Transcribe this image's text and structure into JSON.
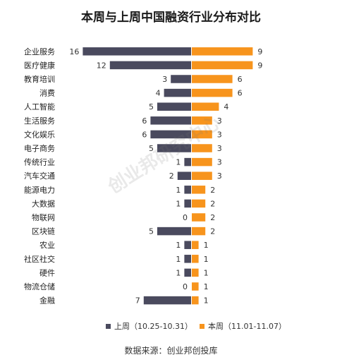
{
  "chart_data": {
    "type": "bar",
    "title": "本周与上周中国融资行业分布对比",
    "categories": [
      "企业服务",
      "医疗健康",
      "教育培训",
      "消费",
      "人工智能",
      "生活服务",
      "文化娱乐",
      "电子商务",
      "传统行业",
      "汽车交通",
      "能源电力",
      "大数据",
      "物联网",
      "区块链",
      "农业",
      "社区社交",
      "硬件",
      "物流仓储",
      "金融"
    ],
    "series": [
      {
        "name": "上周（10.25-10.31）",
        "color": "#4a4a5e",
        "values": [
          16,
          12,
          3,
          4,
          5,
          6,
          6,
          5,
          1,
          2,
          1,
          1,
          0,
          5,
          1,
          1,
          1,
          0,
          7
        ]
      },
      {
        "name": "本周（11.01-11.07）",
        "color": "#f7941d",
        "values": [
          9,
          9,
          6,
          6,
          4,
          3,
          3,
          3,
          3,
          3,
          2,
          2,
          2,
          2,
          1,
          1,
          1,
          1,
          1
        ]
      }
    ],
    "layout": "diverging horizontal bars (last week left, this week right)",
    "legend_position": "bottom",
    "grid": false
  },
  "watermark": "创业邦研究中心",
  "source": "数据来源：创业邦创投库"
}
